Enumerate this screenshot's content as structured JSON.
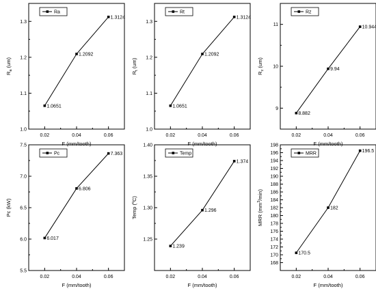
{
  "chart_data": [
    {
      "type": "line",
      "x": [
        0.02,
        0.04,
        0.06
      ],
      "x_tick_labels": [
        "0.02",
        "0.04",
        "0.06"
      ],
      "xlabel": "F (mm/tooth)",
      "ylabel_main": "R",
      "ylabel_sub": "a",
      "ylabel_tail": " (um)",
      "ylim": [
        1.0,
        1.35
      ],
      "y_ticks": [
        1.0,
        1.1,
        1.2,
        1.3
      ],
      "y_tick_labels": [
        "1.0",
        "1.1",
        "1.2",
        "1.3"
      ],
      "series": [
        {
          "name": "Ra",
          "values": [
            1.0651,
            1.2092,
            1.3124
          ]
        }
      ],
      "point_labels": [
        "1.0651",
        "1.2092",
        "1.3124"
      ],
      "legend": "top-left"
    },
    {
      "type": "line",
      "x": [
        0.02,
        0.04,
        0.06
      ],
      "x_tick_labels": [
        "0.02",
        "0.04",
        "0.06"
      ],
      "xlabel": "F (mm/tooth)",
      "ylabel_main": "R",
      "ylabel_sub": "t",
      "ylabel_tail": " (um)",
      "ylim": [
        1.0,
        1.35
      ],
      "y_ticks": [
        1.0,
        1.1,
        1.2,
        1.3
      ],
      "y_tick_labels": [
        "1.0",
        "1.1",
        "1.2",
        "1.3"
      ],
      "series": [
        {
          "name": "Rt",
          "values": [
            1.0651,
            1.2092,
            1.3124
          ]
        }
      ],
      "point_labels": [
        "1.0651",
        "1.2092",
        "1.3124"
      ],
      "legend": "top-left"
    },
    {
      "type": "line",
      "x": [
        0.02,
        0.04,
        0.06
      ],
      "x_tick_labels": [
        "0.02",
        "0.04",
        "0.06"
      ],
      "xlabel": "F (mm/tooth)",
      "ylabel_main": "R",
      "ylabel_sub": "z",
      "ylabel_tail": " (um)",
      "ylim": [
        8.5,
        11.5
      ],
      "y_ticks": [
        9,
        10,
        11
      ],
      "y_tick_labels": [
        "9",
        "10",
        "11"
      ],
      "series": [
        {
          "name": "Rz",
          "values": [
            8.882,
            9.94,
            10.944
          ]
        }
      ],
      "point_labels": [
        "8.882",
        "9.94",
        "10.944"
      ],
      "legend": "top-left"
    },
    {
      "type": "line",
      "x": [
        0.02,
        0.04,
        0.06
      ],
      "x_tick_labels": [
        "0.02",
        "0.04",
        "0.06"
      ],
      "xlabel": "F (mm/tooth)",
      "ylabel_main": "Pc (kW)",
      "ylabel_sub": "",
      "ylabel_tail": "",
      "ylim": [
        5.5,
        7.5
      ],
      "y_ticks": [
        5.5,
        6.0,
        6.5,
        7.0,
        7.5
      ],
      "y_tick_labels": [
        "5.5",
        "6.0",
        "6.5",
        "7.0",
        "7.5"
      ],
      "series": [
        {
          "name": "Pc",
          "values": [
            6.017,
            6.806,
            7.363
          ]
        }
      ],
      "point_labels": [
        "6.017",
        "6.806",
        "7.363"
      ],
      "legend": "top-left"
    },
    {
      "type": "line",
      "x": [
        0.02,
        0.04,
        0.06
      ],
      "x_tick_labels": [
        "0.02",
        "0.04",
        "0.06"
      ],
      "xlabel": "F (mm/tooth)",
      "ylabel_main": "Temp (",
      "ylabel_sup": "o",
      "ylabel_tail": "C)",
      "ylim": [
        1.2,
        1.4
      ],
      "y_ticks": [
        1.25,
        1.3,
        1.35,
        1.4
      ],
      "y_tick_labels": [
        "1.25",
        "1.30",
        "1.35",
        "1.40"
      ],
      "series": [
        {
          "name": "Temp",
          "values": [
            1.239,
            1.296,
            1.374
          ]
        }
      ],
      "point_labels": [
        "1.239",
        "1.296",
        "1.374"
      ],
      "legend": "top-left"
    },
    {
      "type": "line",
      "x": [
        0.02,
        0.04,
        0.06
      ],
      "x_tick_labels": [
        "0.02",
        "0.04",
        "0.06"
      ],
      "xlabel": "F (mm/tooth)",
      "ylabel_main": "MRR (mm",
      "ylabel_sup": "3",
      "ylabel_tail": "/min)",
      "ylim": [
        166,
        198
      ],
      "y_ticks": [
        168,
        170,
        172,
        174,
        176,
        178,
        180,
        182,
        184,
        186,
        188,
        190,
        192,
        194,
        196,
        198
      ],
      "y_tick_labels": [
        "168",
        "170",
        "172",
        "174",
        "176",
        "178",
        "180",
        "182",
        "184",
        "186",
        "188",
        "190",
        "192",
        "194",
        "196",
        "198"
      ],
      "series": [
        {
          "name": "MRR",
          "values": [
            170.5,
            182,
            196.5
          ]
        }
      ],
      "point_labels": [
        "170.5",
        "182",
        "196.5"
      ],
      "legend": "top-left"
    }
  ]
}
